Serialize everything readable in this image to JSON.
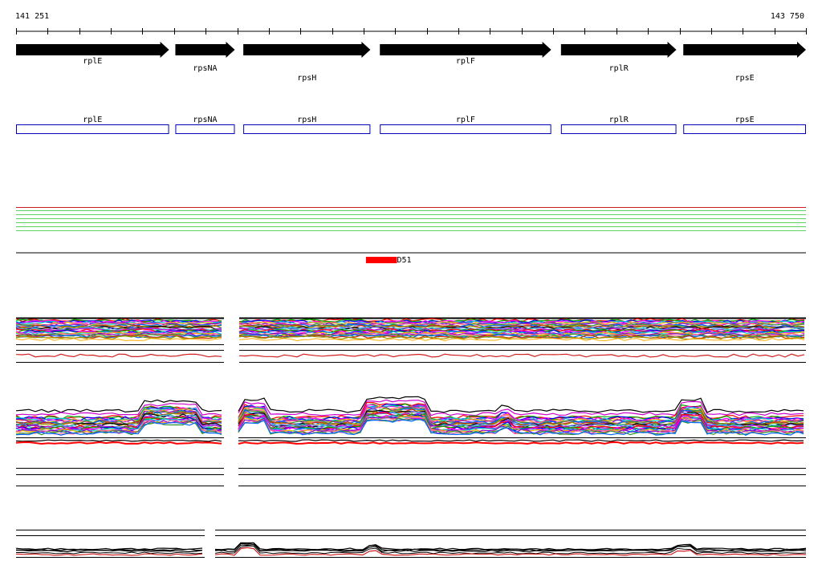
{
  "coords": {
    "start": "141 251",
    "end": "143 750"
  },
  "colors": {
    "arrow": "#000000",
    "gene_box": "#0000bb",
    "feature": "#ff0000",
    "green_lines": "#5fd35f",
    "red_line": "#d02020",
    "axis": "#000000"
  },
  "genes": [
    {
      "name": "rplE",
      "start": 141251,
      "end": 141735
    },
    {
      "name": "rpsNA",
      "start": 141755,
      "end": 141943
    },
    {
      "name": "rpsH",
      "start": 141970,
      "end": 142372
    },
    {
      "name": "rplF",
      "start": 142402,
      "end": 142944
    },
    {
      "name": "rplR",
      "start": 142975,
      "end": 143340
    },
    {
      "name": "rpsE",
      "start": 143362,
      "end": 143750
    }
  ],
  "feature": {
    "label": "D51",
    "start": 142358,
    "end": 142456
  },
  "track_green_lines": 6,
  "track_red_lines": 1
}
